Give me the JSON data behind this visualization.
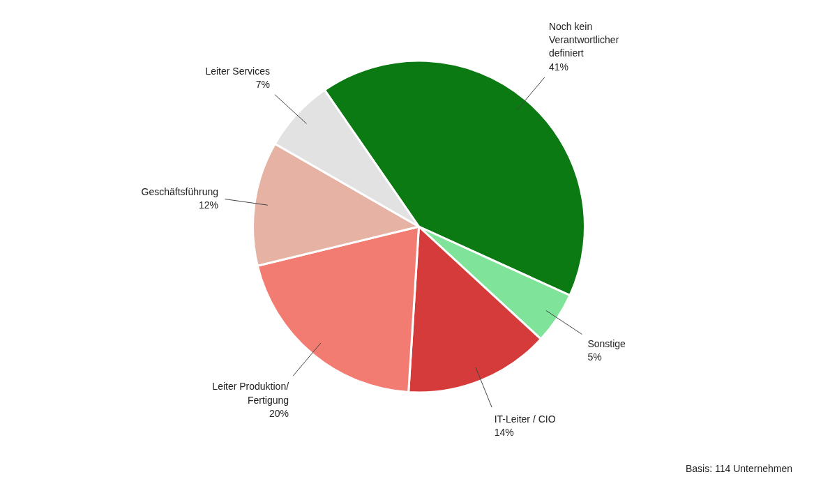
{
  "chart_data": {
    "type": "pie",
    "categories": [
      "Noch kein Verantwortlicher definiert",
      "Sonstige",
      "IT-Leiter / CIO",
      "Leiter Produktion/Fertigung",
      "Geschäftsführung",
      "Leiter Services"
    ],
    "values": [
      41,
      5,
      14,
      20,
      12,
      7
    ],
    "value_labels": [
      "41%",
      "5%",
      "14%",
      "20%",
      "12%",
      "7%"
    ],
    "colors": [
      "#0b7a12",
      "#7fe39a",
      "#d63b3b",
      "#f27b72",
      "#e6b2a4",
      "#e2e2e2"
    ],
    "annotations": [
      "Basis: 114 Unternehmen"
    ]
  }
}
